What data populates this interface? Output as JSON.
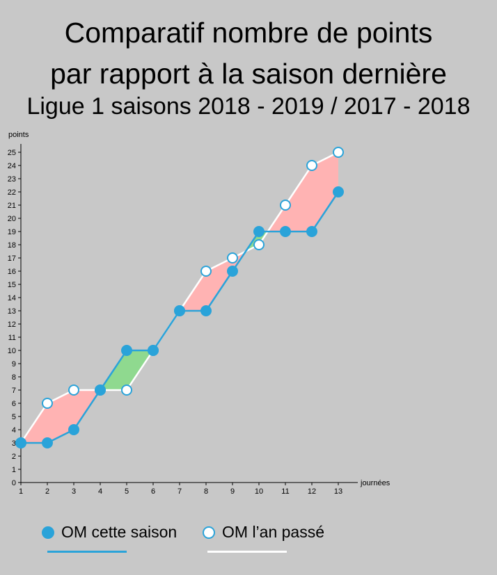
{
  "header": {
    "title_line1": "Comparatif nombre de points",
    "title_line2": "par rapport à la saison dernière",
    "subtitle": "Ligue 1 saisons 2018 - 2019 / 2017 - 2018"
  },
  "chart_data": {
    "type": "line",
    "ylabel": "points",
    "xlabel": "journées",
    "x": [
      1,
      2,
      3,
      4,
      5,
      6,
      7,
      8,
      9,
      10,
      11,
      12,
      13
    ],
    "xlim": [
      1,
      13
    ],
    "ylim": [
      0,
      25
    ],
    "series": [
      {
        "name": "OM cette saison",
        "values": [
          3,
          3,
          4,
          7,
          10,
          10,
          13,
          13,
          16,
          19,
          19,
          19,
          22
        ]
      },
      {
        "name": "OM l’an passé",
        "values": [
          3,
          6,
          7,
          7,
          7,
          10,
          13,
          16,
          17,
          18,
          21,
          24,
          25
        ]
      }
    ],
    "fill_behind": "#ffb3b3",
    "fill_ahead": "#8fd98f",
    "grid": false
  },
  "legend": {
    "items": [
      {
        "label": "OM cette saison",
        "marker_fill": "#2aa3d9",
        "line_color": "#2aa3d9"
      },
      {
        "label": "OM l’an passé",
        "marker_fill": "#ffffff",
        "line_color": "#ffffff"
      }
    ]
  },
  "colors": {
    "background": "#c8c8c8",
    "current": "#2aa3d9",
    "previous": "#ffffff"
  }
}
